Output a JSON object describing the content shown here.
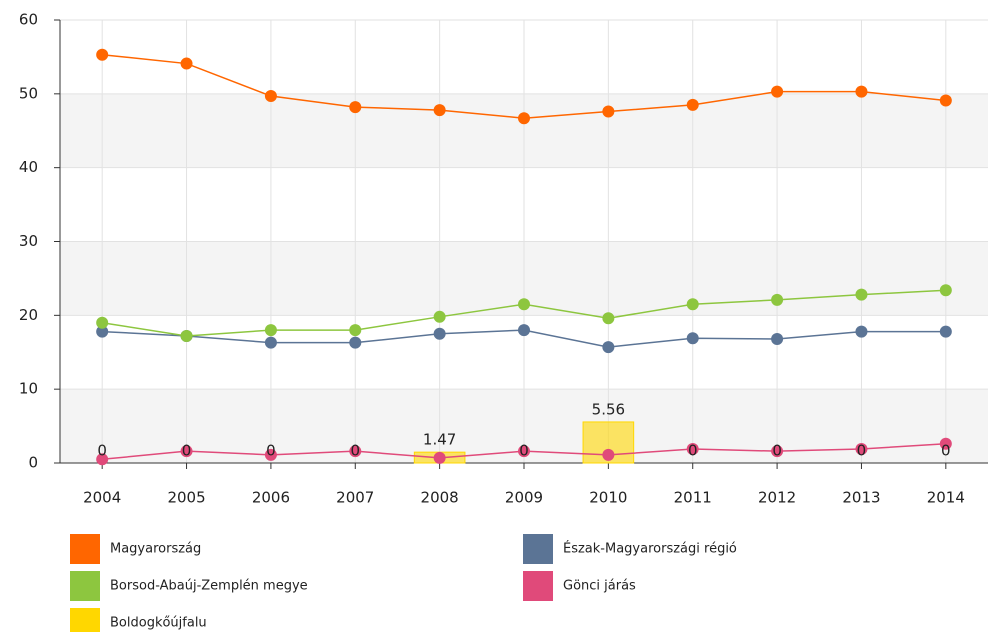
{
  "chart_data": {
    "type": "line",
    "categories": [
      "2004",
      "2005",
      "2006",
      "2007",
      "2008",
      "2009",
      "2010",
      "2011",
      "2012",
      "2013",
      "2014"
    ],
    "ylim": [
      0,
      60
    ],
    "yticks": [
      0,
      10,
      20,
      30,
      40,
      50,
      60
    ],
    "grid": true,
    "series": [
      {
        "name": "Magyarország",
        "color": "#ff6600",
        "values": [
          55.3,
          54.1,
          49.7,
          48.2,
          47.8,
          46.7,
          47.6,
          48.5,
          50.3,
          50.3,
          49.1
        ]
      },
      {
        "name": "Észak-Magyarországi régió",
        "color": "#5b7495",
        "values": [
          17.8,
          17.2,
          16.3,
          16.3,
          17.5,
          18.0,
          15.7,
          16.9,
          16.8,
          17.8,
          17.8
        ]
      },
      {
        "name": "Borsod-Abaúj-Zemplén megye",
        "color": "#8dc63f",
        "values": [
          19.0,
          17.2,
          18.0,
          18.0,
          19.8,
          21.5,
          19.6,
          21.5,
          22.1,
          22.8,
          23.4
        ]
      },
      {
        "name": "Gönci járás",
        "color": "#e04a7a",
        "values": [
          0.5,
          1.6,
          1.1,
          1.6,
          0.7,
          1.6,
          1.1,
          1.9,
          1.6,
          1.9,
          2.6
        ]
      },
      {
        "name": "Boldogkőújfalu",
        "color": "#ffd700",
        "type": "bar",
        "values": [
          0,
          0,
          0,
          0,
          1.47,
          0,
          5.56,
          0,
          0,
          0,
          0
        ]
      }
    ]
  }
}
